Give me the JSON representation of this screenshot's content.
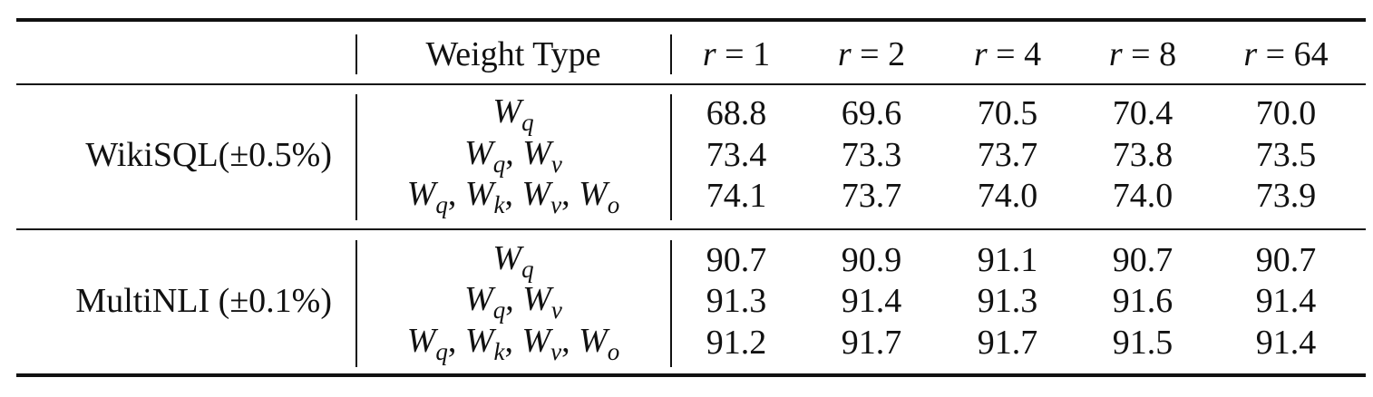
{
  "table": {
    "header": {
      "weight_type": "Weight Type",
      "ranks": [
        [
          {
            "i": "r"
          },
          {
            "t": " = 1"
          }
        ],
        [
          {
            "i": "r"
          },
          {
            "t": " = 2"
          }
        ],
        [
          {
            "i": "r"
          },
          {
            "t": " = 4"
          }
        ],
        [
          {
            "i": "r"
          },
          {
            "t": " = 8"
          }
        ],
        [
          {
            "i": "r"
          },
          {
            "t": " = 64"
          }
        ]
      ]
    },
    "groups": [
      {
        "label": "WikiSQL(±0.5%)",
        "rows": [
          {
            "weight_type": [
              {
                "i": "W"
              },
              {
                "sub": "q"
              }
            ],
            "values": [
              "68.8",
              "69.6",
              "70.5",
              "70.4",
              "70.0"
            ]
          },
          {
            "weight_type": [
              {
                "i": "W"
              },
              {
                "sub": "q"
              },
              {
                "t": ", "
              },
              {
                "i": "W"
              },
              {
                "sub": "v"
              }
            ],
            "values": [
              "73.4",
              "73.3",
              "73.7",
              "73.8",
              "73.5"
            ]
          },
          {
            "weight_type": [
              {
                "i": "W"
              },
              {
                "sub": "q"
              },
              {
                "t": ", "
              },
              {
                "i": "W"
              },
              {
                "sub": "k"
              },
              {
                "t": ", "
              },
              {
                "i": "W"
              },
              {
                "sub": "v"
              },
              {
                "t": ", "
              },
              {
                "i": "W"
              },
              {
                "sub": "o"
              }
            ],
            "values": [
              "74.1",
              "73.7",
              "74.0",
              "74.0",
              "73.9"
            ]
          }
        ]
      },
      {
        "label": "MultiNLI (±0.1%)",
        "rows": [
          {
            "weight_type": [
              {
                "i": "W"
              },
              {
                "sub": "q"
              }
            ],
            "values": [
              "90.7",
              "90.9",
              "91.1",
              "90.7",
              "90.7"
            ]
          },
          {
            "weight_type": [
              {
                "i": "W"
              },
              {
                "sub": "q"
              },
              {
                "t": ", "
              },
              {
                "i": "W"
              },
              {
                "sub": "v"
              }
            ],
            "values": [
              "91.3",
              "91.4",
              "91.3",
              "91.6",
              "91.4"
            ]
          },
          {
            "weight_type": [
              {
                "i": "W"
              },
              {
                "sub": "q"
              },
              {
                "t": ", "
              },
              {
                "i": "W"
              },
              {
                "sub": "k"
              },
              {
                "t": ", "
              },
              {
                "i": "W"
              },
              {
                "sub": "v"
              },
              {
                "t": ", "
              },
              {
                "i": "W"
              },
              {
                "sub": "o"
              }
            ],
            "values": [
              "91.2",
              "91.7",
              "91.7",
              "91.5",
              "91.4"
            ]
          }
        ]
      }
    ]
  }
}
